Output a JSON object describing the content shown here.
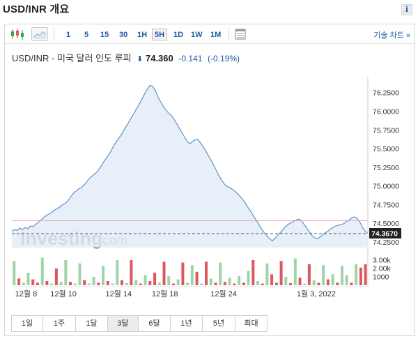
{
  "header": {
    "title": "USD/INR 개요",
    "info_label": "i"
  },
  "toolbar": {
    "intervals": [
      {
        "label": "1",
        "active": false
      },
      {
        "label": "5",
        "active": false
      },
      {
        "label": "15",
        "active": false
      },
      {
        "label": "30",
        "active": false
      },
      {
        "label": "1H",
        "active": false
      },
      {
        "label": "5H",
        "active": true
      },
      {
        "label": "1D",
        "active": false
      },
      {
        "label": "1W",
        "active": false
      },
      {
        "label": "1M",
        "active": false
      }
    ],
    "icons": [
      "candlestick-icon",
      "area-chart-icon",
      "table-icon"
    ],
    "tech_chart_label": "기술 차트 »"
  },
  "quote": {
    "name": "USD/INR - 미국 달러 인도 루피",
    "arrow": "⬇",
    "price": "74.360",
    "change": "-0.141",
    "change_pct": "(-0.19%)",
    "direction_color": "#1f5aa6"
  },
  "chart_data": {
    "type": "area",
    "y": [
      74.37,
      74.39,
      74.41,
      74.43,
      74.45,
      74.47,
      74.53,
      74.56,
      74.58,
      74.61,
      74.63,
      74.66,
      74.68,
      74.7,
      74.71,
      74.73,
      74.74,
      74.75,
      74.76,
      74.77,
      74.78,
      74.79,
      74.81,
      74.83,
      74.84,
      74.86,
      74.87,
      74.89,
      74.89,
      74.9,
      74.92,
      74.93,
      74.94,
      74.95,
      74.98,
      75.02,
      75.06,
      75.1,
      75.14,
      75.18,
      75.22,
      75.28,
      75.34,
      75.4,
      75.45,
      75.51,
      75.57,
      75.62,
      75.66,
      75.7,
      75.73,
      75.77,
      75.81,
      75.84,
      75.87,
      75.9,
      75.93,
      75.97,
      76.0,
      76.04,
      76.07,
      76.11,
      76.14,
      76.17,
      76.21,
      76.24,
      76.27,
      76.31,
      76.34,
      76.36,
      76.33,
      76.29,
      76.24,
      76.19,
      76.15,
      76.11,
      76.08,
      76.06,
      76.04,
      76.02,
      76.0,
      75.98,
      75.93,
      75.87,
      75.8,
      75.72,
      75.65,
      75.58,
      75.56,
      75.59,
      75.61,
      75.63,
      75.6,
      75.55,
      75.5,
      75.44,
      75.38,
      75.32,
      75.25,
      75.19,
      75.13,
      75.07,
      75.03,
      75.0,
      74.98,
      74.97,
      74.95,
      74.93,
      74.91,
      74.88,
      74.85,
      74.81,
      74.77,
      74.72,
      74.68,
      74.63,
      74.58,
      74.54,
      74.49,
      74.44,
      74.4,
      74.36,
      74.32,
      74.28,
      74.27,
      74.3,
      74.33,
      74.36,
      74.39,
      74.42,
      74.45,
      74.48,
      74.5,
      74.52,
      74.53,
      74.54,
      74.55,
      74.56,
      74.55,
      74.52,
      74.48,
      74.43,
      74.39,
      74.36,
      74.33,
      74.31,
      74.3,
      74.31,
      74.33,
      74.35,
      74.37,
      74.39,
      74.4,
      74.42,
      74.44,
      74.45,
      74.46,
      74.47,
      74.47,
      74.48,
      74.49,
      74.49,
      74.5,
      74.52,
      74.54,
      74.55,
      74.57,
      74.59,
      74.58,
      74.55,
      74.5,
      74.45,
      74.4,
      74.37
    ],
    "series": [
      {
        "values": [
          74.4,
          74.42,
          74.41,
          74.44,
          74.42,
          74.45,
          74.43,
          74.47,
          74.46,
          74.49,
          74.52,
          74.55,
          74.58,
          74.61,
          74.63,
          74.65,
          74.68,
          74.7,
          74.72,
          74.75,
          74.77,
          74.8,
          74.85,
          74.9,
          74.93,
          74.96,
          74.98,
          75.01,
          75.05,
          75.1,
          75.13,
          75.16,
          75.19,
          75.24,
          75.29,
          75.35,
          75.4,
          75.45,
          75.52,
          75.58,
          75.63,
          75.68,
          75.74,
          75.8,
          75.86,
          75.92,
          75.98,
          76.04,
          76.1,
          76.17,
          76.24,
          76.3,
          76.35,
          76.34,
          76.28,
          76.2,
          76.13,
          76.07,
          76.02,
          75.98,
          75.95,
          75.9,
          75.84,
          75.78,
          75.72,
          75.66,
          75.6,
          75.57,
          75.6,
          75.62,
          75.63,
          75.58,
          75.53,
          75.47,
          75.41,
          75.35,
          75.28,
          75.21,
          75.14,
          75.08,
          75.03,
          75.0,
          74.98,
          74.96,
          74.93,
          74.9,
          74.86,
          74.82,
          74.77,
          74.71,
          74.66,
          74.6,
          74.55,
          74.49,
          74.43,
          74.38,
          74.34,
          74.3,
          74.27,
          74.3,
          74.34,
          74.38,
          74.42,
          74.46,
          74.49,
          74.51,
          74.53,
          74.55,
          74.56,
          74.54,
          74.49,
          74.44,
          74.39,
          74.34,
          74.31,
          74.3,
          74.32,
          74.35,
          74.38,
          74.4,
          74.43,
          74.45,
          74.47,
          74.48,
          74.49,
          74.5,
          74.53,
          74.55,
          74.58,
          74.59,
          74.57,
          74.52,
          74.45,
          74.4,
          74.37
        ]
      }
    ],
    "y_ticks": [
      "76.2500",
      "76.0000",
      "75.7500",
      "75.5000",
      "75.2500",
      "75.0000",
      "74.7500",
      "74.5000",
      "74.2500"
    ],
    "ylim": [
      74.18,
      76.42
    ],
    "last_price_label": "74.3670",
    "last_price": 74.367,
    "reference_line": 74.54,
    "x_tick_labels": [
      "12월 8",
      "12월 10",
      "12월 14",
      "12월 18",
      "12월 24",
      "1월 3, 2022"
    ],
    "x_tick_positions": [
      0.04,
      0.145,
      0.3,
      0.43,
      0.595,
      0.855
    ],
    "volume_ticks": [
      "3.00k",
      "2.00k",
      "1000"
    ],
    "volume_max": 3500,
    "volume": [
      {
        "v": 2900,
        "up": true
      },
      {
        "v": 800,
        "up": false
      },
      {
        "v": 300,
        "up": true
      },
      {
        "v": 1500,
        "up": true
      },
      {
        "v": 700,
        "up": false
      },
      {
        "v": 300,
        "up": false
      },
      {
        "v": 3300,
        "up": true
      },
      {
        "v": 500,
        "up": false
      },
      {
        "v": 200,
        "up": true
      },
      {
        "v": 2000,
        "up": false
      },
      {
        "v": 400,
        "up": true
      },
      {
        "v": 3000,
        "up": true
      },
      {
        "v": 400,
        "up": false
      },
      {
        "v": 200,
        "up": true
      },
      {
        "v": 2600,
        "up": true
      },
      {
        "v": 600,
        "up": false
      },
      {
        "v": 200,
        "up": true
      },
      {
        "v": 1000,
        "up": true
      },
      {
        "v": 300,
        "up": false
      },
      {
        "v": 2300,
        "up": true
      },
      {
        "v": 500,
        "up": false
      },
      {
        "v": 200,
        "up": true
      },
      {
        "v": 3000,
        "up": true
      },
      {
        "v": 600,
        "up": false
      },
      {
        "v": 250,
        "up": true
      },
      {
        "v": 3000,
        "up": false
      },
      {
        "v": 600,
        "up": true
      },
      {
        "v": 200,
        "up": false
      },
      {
        "v": 1200,
        "up": true
      },
      {
        "v": 500,
        "up": false
      },
      {
        "v": 1500,
        "up": false
      },
      {
        "v": 300,
        "up": true
      },
      {
        "v": 2800,
        "up": false
      },
      {
        "v": 1100,
        "up": true
      },
      {
        "v": 200,
        "up": false
      },
      {
        "v": 700,
        "up": true
      },
      {
        "v": 2700,
        "up": false
      },
      {
        "v": 300,
        "up": true
      },
      {
        "v": 2400,
        "up": true
      },
      {
        "v": 1600,
        "up": false
      },
      {
        "v": 200,
        "up": true
      },
      {
        "v": 2800,
        "up": false
      },
      {
        "v": 800,
        "up": true
      },
      {
        "v": 300,
        "up": false
      },
      {
        "v": 2700,
        "up": true
      },
      {
        "v": 400,
        "up": false
      },
      {
        "v": 900,
        "up": true
      },
      {
        "v": 200,
        "up": false
      },
      {
        "v": 1100,
        "up": true
      },
      {
        "v": 300,
        "up": false
      },
      {
        "v": 1700,
        "up": true
      },
      {
        "v": 3000,
        "up": false
      },
      {
        "v": 500,
        "up": true
      },
      {
        "v": 200,
        "up": false
      },
      {
        "v": 2600,
        "up": true
      },
      {
        "v": 1300,
        "up": false
      },
      {
        "v": 300,
        "up": false
      },
      {
        "v": 2900,
        "up": false
      },
      {
        "v": 1000,
        "up": true
      },
      {
        "v": 250,
        "up": false
      },
      {
        "v": 3200,
        "up": true
      },
      {
        "v": 900,
        "up": false
      },
      {
        "v": 200,
        "up": true
      },
      {
        "v": 2500,
        "up": false
      },
      {
        "v": 600,
        "up": true
      },
      {
        "v": 300,
        "up": false
      },
      {
        "v": 2400,
        "up": true
      },
      {
        "v": 700,
        "up": false
      },
      {
        "v": 1300,
        "up": true
      },
      {
        "v": 300,
        "up": false
      },
      {
        "v": 2300,
        "up": true
      },
      {
        "v": 1200,
        "up": true
      },
      {
        "v": 300,
        "up": false
      },
      {
        "v": 2500,
        "up": true
      },
      {
        "v": 2100,
        "up": false
      },
      {
        "v": 2500,
        "up": false
      }
    ],
    "colors": {
      "line": "#5b93cc",
      "area": "#e3edf7",
      "up": "#9fd3a8",
      "down": "#d9595c",
      "price_ref": "#e8a8a8",
      "last_price_bg": "#222222"
    }
  },
  "watermark": {
    "brand": "Investing",
    "suffix": ".com"
  },
  "ranges": [
    {
      "label": "1일",
      "active": false
    },
    {
      "label": "1주",
      "active": false
    },
    {
      "label": "1달",
      "active": false
    },
    {
      "label": "3달",
      "active": true
    },
    {
      "label": "6달",
      "active": false
    },
    {
      "label": "1년",
      "active": false
    },
    {
      "label": "5년",
      "active": false
    },
    {
      "label": "최대",
      "active": false
    }
  ]
}
